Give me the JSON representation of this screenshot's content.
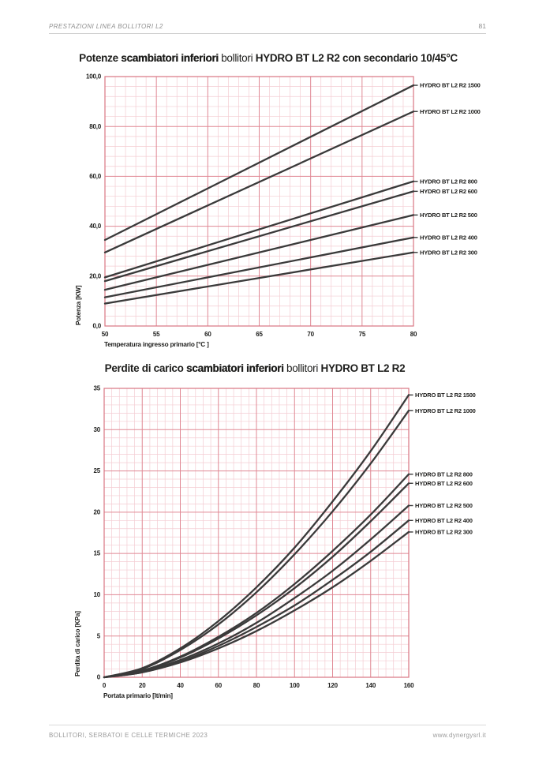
{
  "header": {
    "title": "PRESTAZIONI LINEA BOLLITORI L2",
    "page_number": "81"
  },
  "footer": {
    "left": "BOLLITORI, SERBATOI E CELLE TERMICHE 2023",
    "right": "www.dynergysrl.it"
  },
  "colors": {
    "grid_minor": "#f4ccd2",
    "grid_major": "#e08894",
    "plot_border": "#d87683",
    "series_line": "#3a3a3a",
    "tick_text": "#1d1d1b",
    "muted_text": "#9b9b9b"
  },
  "chart_data": [
    {
      "type": "line",
      "title": "Potenze scambiatori inferiori bollitori HYDRO BT L2 R2  con secondario 10/45°C",
      "title_segments": [
        {
          "text": "Potenze ",
          "style": "medium"
        },
        {
          "text": "scambiatori inferiori",
          "style": "heavy"
        },
        {
          "text": " bollitori ",
          "style": "light"
        },
        {
          "text": "HYDRO BT L2 R2  con secondario 10/45°C",
          "style": "bold"
        }
      ],
      "xlabel": "Temperatura ingresso primario [°C ]",
      "ylabel": "Potenza [KW]",
      "xlim": [
        50,
        80
      ],
      "ylim": [
        0,
        100
      ],
      "x_ticks": [
        50,
        55,
        60,
        65,
        70,
        75,
        80
      ],
      "x_tick_labels": [
        "50",
        "55",
        "60",
        "65",
        "70",
        "75",
        "80"
      ],
      "y_ticks": [
        0,
        20,
        40,
        60,
        80,
        100
      ],
      "y_tick_labels": [
        "0,0",
        "20,0",
        "40,0",
        "60,0",
        "80,0",
        "100,0"
      ],
      "x_minor_step": 1,
      "y_minor_step": 4,
      "grid": true,
      "legend_position": "right",
      "series": [
        {
          "name": "HYDRO BT L2 R2 1500",
          "x": [
            50,
            80
          ],
          "values": [
            34.5,
            96.5
          ]
        },
        {
          "name": "HYDRO BT L2 R2 1000",
          "x": [
            50,
            80
          ],
          "values": [
            29.5,
            86.0
          ]
        },
        {
          "name": "HYDRO BT L2 R2 800",
          "x": [
            50,
            80
          ],
          "values": [
            19.5,
            58.0
          ]
        },
        {
          "name": "HYDRO BT L2 R2 600",
          "x": [
            50,
            80
          ],
          "values": [
            18.0,
            54.0
          ]
        },
        {
          "name": "HYDRO BT L2 R2 500",
          "x": [
            50,
            80
          ],
          "values": [
            14.5,
            44.5
          ]
        },
        {
          "name": "HYDRO BT L2 R2 400",
          "x": [
            50,
            80
          ],
          "values": [
            11.5,
            35.5
          ]
        },
        {
          "name": "HYDRO BT L2 R2 300",
          "x": [
            50,
            80
          ],
          "values": [
            9.0,
            29.5
          ]
        }
      ]
    },
    {
      "type": "line",
      "title": "Perdite di carico scambiatori inferiori bollitori HYDRO BT L2 R2",
      "title_segments": [
        {
          "text": "Perdite di carico ",
          "style": "medium"
        },
        {
          "text": "scambiatori inferiori",
          "style": "heavy"
        },
        {
          "text": " bollitori ",
          "style": "light"
        },
        {
          "text": "HYDRO BT L2 R2",
          "style": "bold"
        }
      ],
      "xlabel": "Portata primario [lt/min]",
      "ylabel": "Perdita di carico [KPa]",
      "xlim": [
        0,
        160
      ],
      "ylim": [
        0,
        35
      ],
      "x_ticks": [
        0,
        20,
        40,
        60,
        80,
        100,
        120,
        140,
        160
      ],
      "x_tick_labels": [
        "0",
        "20",
        "40",
        "60",
        "80",
        "100",
        "120",
        "140",
        "160"
      ],
      "y_ticks": [
        0,
        5,
        10,
        15,
        20,
        25,
        30,
        35
      ],
      "y_tick_labels": [
        "0",
        "5",
        "10",
        "15",
        "20",
        "25",
        "30",
        "35"
      ],
      "x_minor_step": 4,
      "y_minor_step": 1,
      "grid": true,
      "legend_position": "right",
      "series": [
        {
          "name": "HYDRO BT L2 R2 1500",
          "x": [
            0,
            20,
            40,
            60,
            80,
            100,
            120,
            140,
            160
          ],
          "values": [
            0,
            1.1,
            3.5,
            6.8,
            10.9,
            15.7,
            21.3,
            27.4,
            34.2
          ]
        },
        {
          "name": "HYDRO BT L2 R2 1000",
          "x": [
            0,
            20,
            40,
            60,
            80,
            100,
            120,
            140,
            160
          ],
          "values": [
            0,
            1.0,
            3.3,
            6.4,
            10.3,
            14.9,
            20.1,
            25.9,
            32.3
          ]
        },
        {
          "name": "HYDRO BT L2 R2 800",
          "x": [
            0,
            20,
            40,
            60,
            80,
            100,
            120,
            140,
            160
          ],
          "values": [
            0,
            0.8,
            2.5,
            4.9,
            7.8,
            11.3,
            15.3,
            19.7,
            24.6
          ]
        },
        {
          "name": "HYDRO BT L2 R2 600",
          "x": [
            0,
            20,
            40,
            60,
            80,
            100,
            120,
            140,
            160
          ],
          "values": [
            0,
            0.8,
            2.4,
            4.7,
            7.5,
            10.8,
            14.6,
            18.9,
            23.5
          ]
        },
        {
          "name": "HYDRO BT L2 R2 500",
          "x": [
            0,
            20,
            40,
            60,
            80,
            100,
            120,
            140,
            160
          ],
          "values": [
            0,
            0.7,
            2.1,
            4.1,
            6.6,
            9.6,
            12.9,
            16.7,
            20.8
          ]
        },
        {
          "name": "HYDRO BT L2 R2 400",
          "x": [
            0,
            20,
            40,
            60,
            80,
            100,
            120,
            140,
            160
          ],
          "values": [
            0,
            0.6,
            1.9,
            3.8,
            6.1,
            8.7,
            11.8,
            15.2,
            19.0
          ]
        },
        {
          "name": "HYDRO BT L2 R2 300",
          "x": [
            0,
            20,
            40,
            60,
            80,
            100,
            120,
            140,
            160
          ],
          "values": [
            0,
            0.6,
            1.8,
            3.5,
            5.6,
            8.1,
            10.9,
            14.1,
            17.6
          ]
        }
      ]
    }
  ]
}
